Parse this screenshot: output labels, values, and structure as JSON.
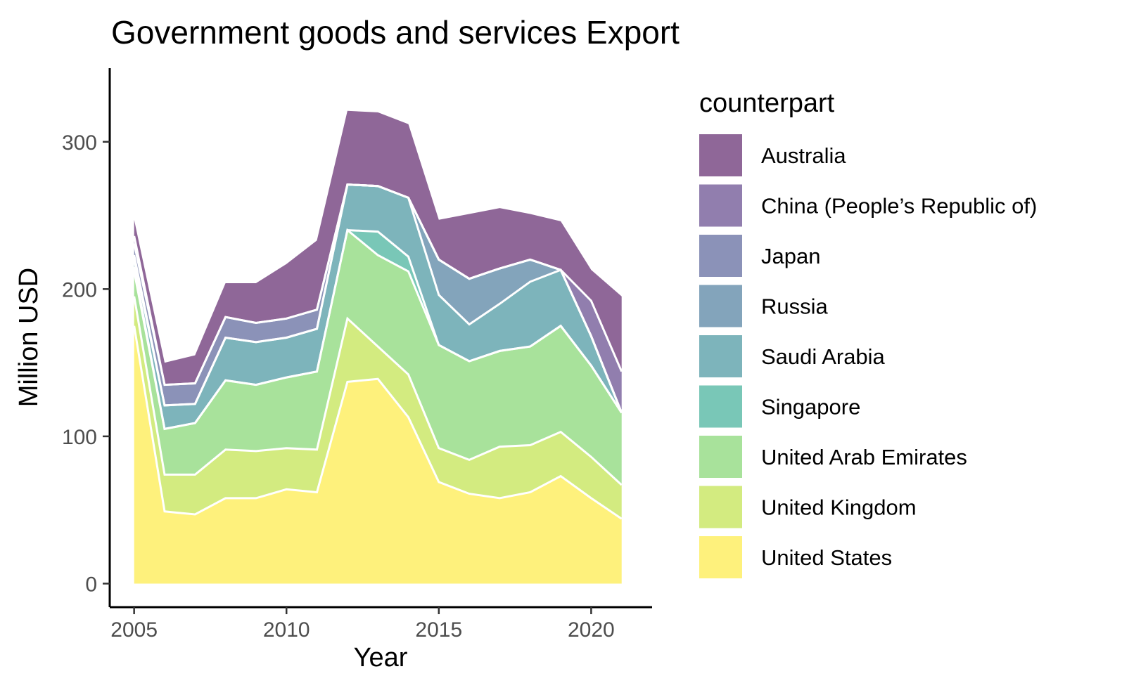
{
  "chart_data": {
    "type": "area",
    "stacked": true,
    "title": "Government goods and services Export",
    "xlabel": "Year",
    "ylabel": "Million USD",
    "xlim": [
      2004.2,
      2022
    ],
    "ylim": [
      -16,
      350
    ],
    "x_ticks": [
      2005,
      2010,
      2015,
      2020
    ],
    "y_ticks": [
      0,
      100,
      200,
      300
    ],
    "grid": false,
    "legend": {
      "title": "counterpart",
      "position": "right"
    },
    "x": [
      2005,
      2006,
      2007,
      2008,
      2009,
      2010,
      2011,
      2012,
      2013,
      2014,
      2015,
      2016,
      2017,
      2018,
      2019,
      2020,
      2021
    ],
    "series": [
      {
        "name": "United States",
        "color": "#fde725",
        "values": [
          175,
          49,
          47,
          58,
          58,
          64,
          62,
          137,
          139,
          113,
          69,
          61,
          58,
          62,
          73,
          58,
          44
        ]
      },
      {
        "name": "United Kingdom",
        "color": "#b5de2b",
        "values": [
          20,
          25,
          27,
          33,
          32,
          28,
          29,
          43,
          22,
          29,
          23,
          23,
          35,
          32,
          30,
          28,
          23
        ]
      },
      {
        "name": "United Arab Emirates",
        "color": "#6ece58",
        "values": [
          17,
          31,
          35,
          47,
          45,
          48,
          53,
          60,
          62,
          70,
          70,
          67,
          65,
          67,
          72,
          62,
          49
        ]
      },
      {
        "name": "Singapore",
        "color": "#1fa187",
        "values": [
          3,
          0,
          0,
          0,
          0,
          0,
          0,
          0,
          16,
          10,
          0,
          0,
          0,
          0,
          0,
          0,
          0
        ]
      },
      {
        "name": "Saudi Arabia",
        "color": "#26828e",
        "values": [
          5,
          16,
          13,
          29,
          29,
          27,
          29,
          31,
          31,
          40,
          34,
          25,
          32,
          44,
          38,
          20,
          0
        ]
      },
      {
        "name": "Russia",
        "color": "#31688e",
        "values": [
          3,
          0,
          0,
          0,
          0,
          0,
          0,
          0,
          0,
          0,
          24,
          31,
          24,
          15,
          0,
          0,
          0
        ]
      },
      {
        "name": "Japan",
        "color": "#3e4989",
        "values": [
          8,
          14,
          14,
          14,
          13,
          13,
          13,
          0,
          0,
          0,
          0,
          0,
          0,
          0,
          0,
          0,
          0
        ]
      },
      {
        "name": "China (People’s Republic of)",
        "color": "#482878",
        "values": [
          5,
          0,
          0,
          0,
          0,
          0,
          0,
          0,
          0,
          0,
          0,
          0,
          0,
          0,
          0,
          24,
          28
        ]
      },
      {
        "name": "Australia",
        "color": "#440154",
        "values": [
          11,
          15,
          19,
          23,
          27,
          37,
          47,
          50,
          50,
          50,
          27,
          44,
          41,
          31,
          33,
          21,
          51
        ]
      }
    ]
  }
}
